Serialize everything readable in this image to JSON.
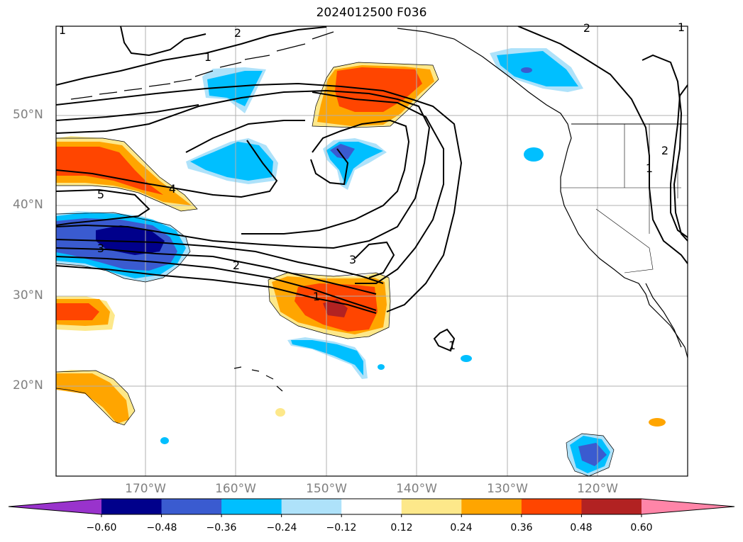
{
  "title": "2024012500 F036",
  "lat_labels": [
    "50°N",
    "40°N",
    "30°N",
    "20°N"
  ],
  "lon_labels": [
    "170°W",
    "160°W",
    "150°W",
    "140°W",
    "130°W",
    "120°W"
  ],
  "contour_labels": [
    "1",
    "2",
    "3",
    "4",
    "5",
    "1",
    "2",
    "3",
    "1",
    "1",
    "2",
    "1",
    "2",
    "1"
  ],
  "colorbar": {
    "ticks": [
      "−0.60",
      "−0.48",
      "−0.36",
      "−0.24",
      "−0.12",
      "0.12",
      "0.24",
      "0.36",
      "0.48",
      "0.60"
    ],
    "colors": [
      "#9933cc",
      "#00008b",
      "#3a5bd0",
      "#00bfff",
      "#aee2fa",
      "#ffffff",
      "#fde88a",
      "#ffa500",
      "#ff4500",
      "#b22222",
      "#ff85a8"
    ]
  }
}
